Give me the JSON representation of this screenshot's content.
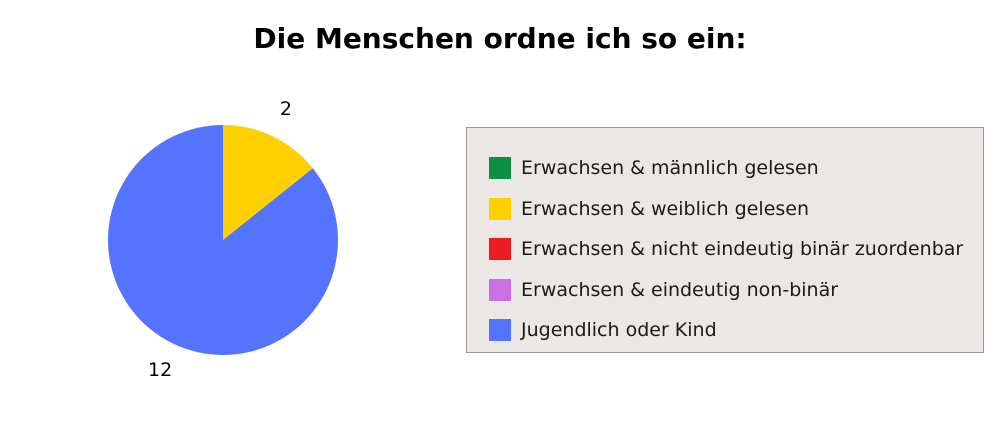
{
  "chart_data": {
    "type": "pie",
    "title": "Die Menschen ordne ich so ein:",
    "categories": [
      "Erwachsen & männlich gelesen",
      "Erwachsen & weiblich gelesen",
      "Erwachsen & nicht eindeutig binär zuordenbar",
      "Erwachsen & eindeutig non-binär",
      "Jugendlich oder Kind"
    ],
    "values": [
      0,
      2,
      0,
      0,
      12
    ],
    "colors": [
      "#0a8f45",
      "#ffd000",
      "#ee1c24",
      "#cc6ee6",
      "#5473ff"
    ],
    "data_labels": [
      "",
      "2",
      "",
      "",
      "12"
    ],
    "legend_position": "right"
  }
}
